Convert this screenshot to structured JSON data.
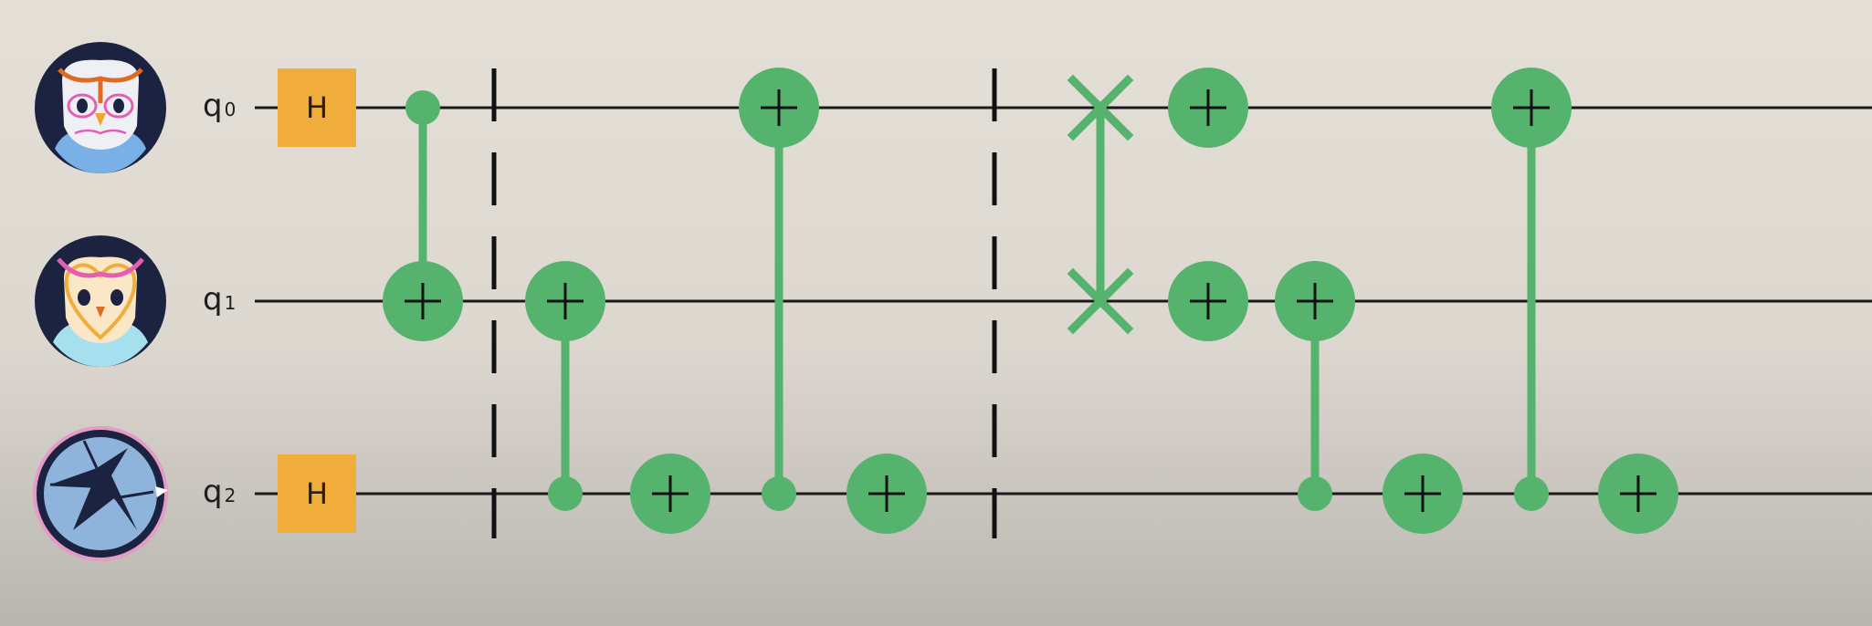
{
  "colors": {
    "wire": "#1a1a1a",
    "gate_green": "#55b36e",
    "h_gate": "#f1ad3c",
    "barrier": "#111111",
    "navy": "#1c2340"
  },
  "qubits": [
    {
      "label": "q",
      "index": "0",
      "avatar": "owl-avatar-white"
    },
    {
      "label": "q",
      "index": "1",
      "avatar": "owl-avatar-heart"
    },
    {
      "label": "q",
      "index": "2",
      "avatar": "broken-orb-avatar"
    }
  ],
  "gates": {
    "h_label": "H",
    "h_gates": [
      {
        "qubit": 0,
        "step": 0
      },
      {
        "qubit": 2,
        "step": 0
      }
    ],
    "cnots": [
      {
        "control": 0,
        "target": 1,
        "step": 1
      },
      {
        "control": 2,
        "target": 1,
        "step": 2
      },
      {
        "target": 2,
        "step": 3
      },
      {
        "control": 2,
        "target": 0,
        "step": 4
      },
      {
        "target": 2,
        "step": 5
      },
      {
        "target": 0,
        "step": 7
      },
      {
        "target": 1,
        "step": 7
      },
      {
        "control": 2,
        "target": 1,
        "step": 8
      },
      {
        "target": 2,
        "step": 9
      },
      {
        "control": 2,
        "target": 0,
        "step": 10
      },
      {
        "target": 2,
        "step": 11
      }
    ],
    "swaps": [
      {
        "qubits": [
          0,
          1
        ],
        "step": 6
      }
    ],
    "barriers": [
      1.5,
      5.5
    ]
  }
}
